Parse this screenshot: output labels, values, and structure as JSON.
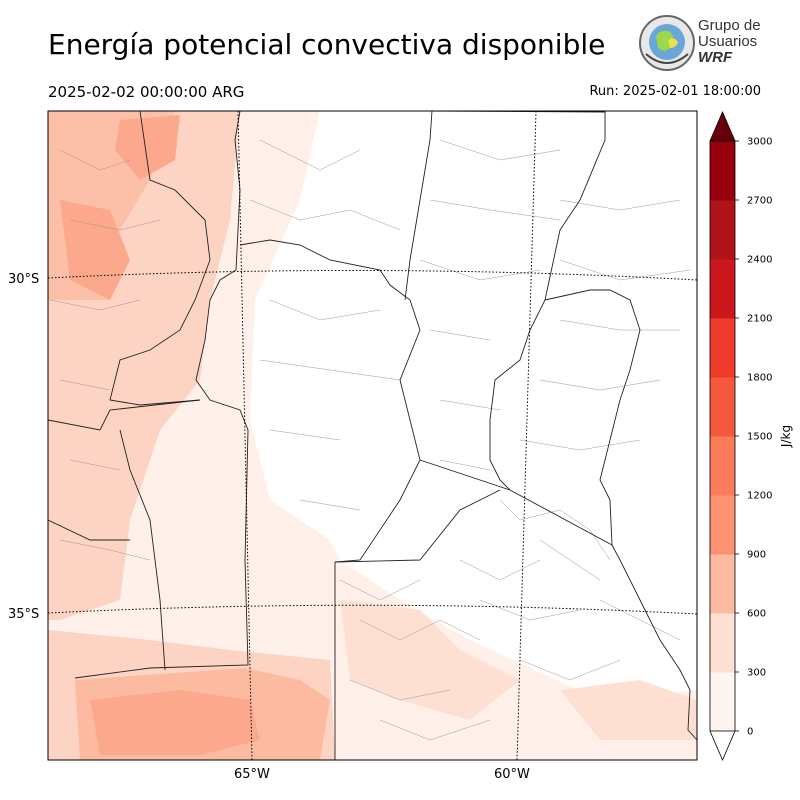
{
  "header": {
    "title": "Energía potencial convectiva disponible",
    "valid_time": "2025-02-02 00:00:00 ARG",
    "run_time": "Run: 2025-02-01 18:00:00"
  },
  "logo": {
    "line1": "Grupo de",
    "line2": "Usuarios",
    "line3": "WRF"
  },
  "map": {
    "lat_labels": [
      "30°S",
      "35°S"
    ],
    "lon_labels": [
      "65°W",
      "60°W"
    ]
  },
  "colorbar": {
    "unit": "J/kg",
    "ticks": [
      "0",
      "300",
      "600",
      "900",
      "1200",
      "1500",
      "1800",
      "2100",
      "2400",
      "2700",
      "3000"
    ],
    "colors": [
      "#fff5f0",
      "#fee0d2",
      "#fcbba1",
      "#fc9272",
      "#fb7b5b",
      "#f6583e",
      "#ef3b2c",
      "#cb181d",
      "#b01418",
      "#99000d",
      "#67000d"
    ]
  }
}
